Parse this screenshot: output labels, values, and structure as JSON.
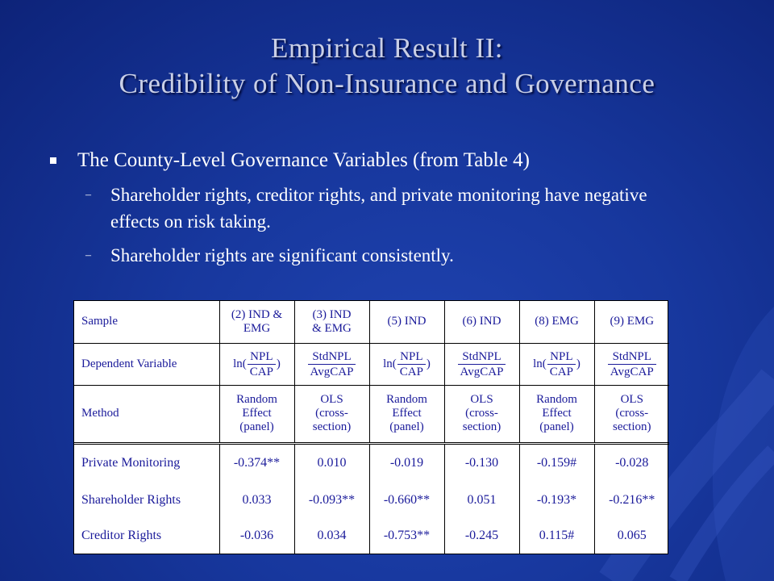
{
  "title": {
    "line1": "Empirical Result II:",
    "line2": "Credibility of Non-Insurance and Governance"
  },
  "bullets": {
    "main": "The County-Level Governance Variables (from Table 4)",
    "subs": [
      "Shareholder rights, creditor rights, and private monitoring have negative effects on risk taking.",
      "Shareholder rights are significant consistently."
    ]
  },
  "table": {
    "sample_label": "Sample",
    "dep_label": "Dependent Variable",
    "method_label": "Method",
    "samples": [
      [
        "(2) IND &",
        "EMG"
      ],
      [
        "(3) IND",
        "& EMG"
      ],
      [
        "(5) IND"
      ],
      [
        "(6) IND"
      ],
      [
        "(8) EMG"
      ],
      [
        "(9) EMG"
      ]
    ],
    "dep": {
      "ln_open": "ln(",
      "ln_close": ")",
      "npl": "NPL",
      "cap": "CAP",
      "stdnpl": "StdNPL",
      "avgcap": "AvgCAP"
    },
    "methods": [
      [
        "Random",
        "Effect",
        "(panel)"
      ],
      [
        "OLS",
        "(cross-",
        "section)"
      ],
      [
        "Random",
        "Effect",
        "(panel)"
      ],
      [
        "OLS",
        "(cross-",
        "section)"
      ],
      [
        "Random",
        "Effect",
        "(panel)"
      ],
      [
        "OLS",
        "(cross-",
        "section)"
      ]
    ],
    "rows": [
      {
        "label": "Private Monitoring",
        "values": [
          "-0.374**",
          "0.010",
          "-0.019",
          "-0.130",
          "-0.159#",
          "-0.028"
        ]
      },
      {
        "label": "Shareholder Rights",
        "values": [
          "0.033",
          "-0.093**",
          "-0.660**",
          "0.051",
          "-0.193*",
          "-0.216**"
        ]
      },
      {
        "label": "Creditor Rights",
        "values": [
          "-0.036",
          "0.034",
          "-0.753**",
          "-0.245",
          "0.115#",
          "0.065"
        ]
      }
    ]
  }
}
